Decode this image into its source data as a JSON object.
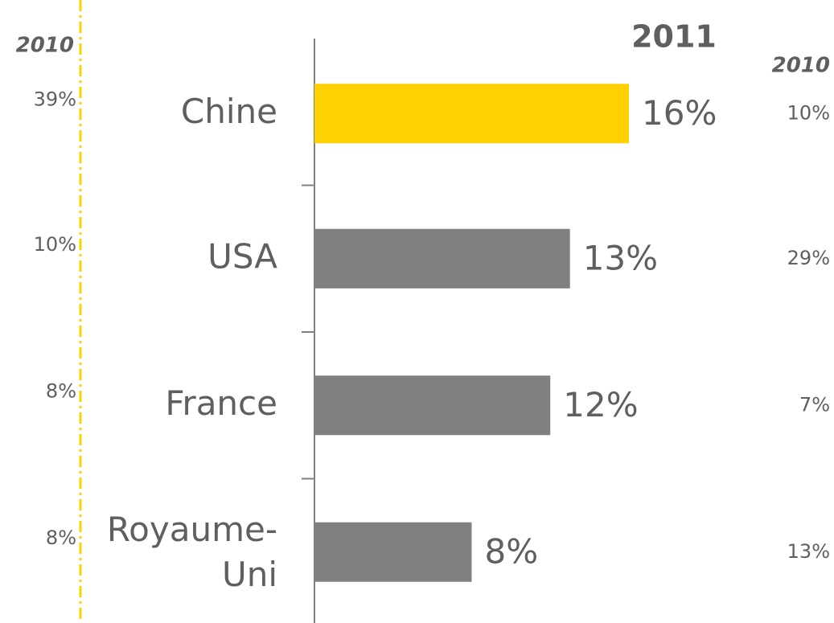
{
  "chart_data": {
    "type": "bar",
    "title": "2011",
    "categories": [
      "Chine",
      "USA",
      "France",
      "Royaume-Uni"
    ],
    "values": [
      16,
      13,
      12,
      8
    ],
    "value_labels": [
      "16%",
      "13%",
      "12%",
      "8%"
    ],
    "colors": [
      "#ffd100",
      "#808080",
      "#808080",
      "#808080"
    ],
    "left_column": {
      "title": "2010",
      "labels": [
        "39%",
        "10%",
        "8%",
        "8%"
      ]
    },
    "right_column": {
      "title": "2010",
      "labels": [
        "10%",
        "29%",
        "7%",
        "13%"
      ]
    }
  }
}
